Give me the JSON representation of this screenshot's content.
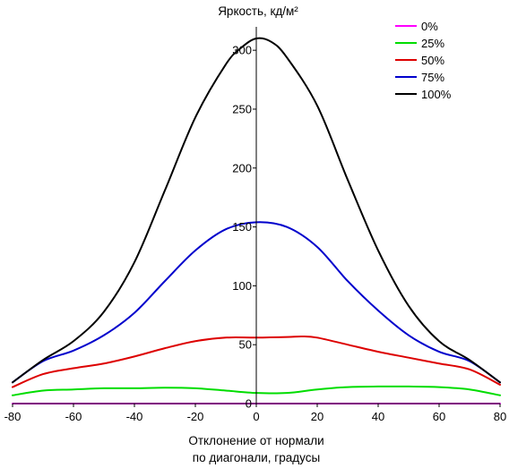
{
  "chart_data": {
    "type": "line",
    "ylabel": "Яркость, кд/м²",
    "xlabel_lines": [
      "Отклонение от нормали",
      "по диагонали, градусы"
    ],
    "xlim": [
      -80,
      80
    ],
    "ylim": [
      0,
      310
    ],
    "x_ticks": [
      -80,
      -60,
      -40,
      -20,
      0,
      20,
      40,
      60,
      80
    ],
    "y_ticks": [
      0,
      50,
      100,
      150,
      200,
      250,
      300
    ],
    "grid": false,
    "legend_position": "top-right",
    "series": [
      {
        "name": "0%",
        "color": "#ff00ff",
        "x": [
          -80,
          -60,
          -40,
          -20,
          0,
          20,
          40,
          60,
          80
        ],
        "y": [
          0,
          0,
          0,
          0,
          0,
          0,
          0,
          0,
          0
        ]
      },
      {
        "name": "25%",
        "color": "#00dd00",
        "x": [
          -80,
          -70,
          -60,
          -50,
          -40,
          -30,
          -20,
          -10,
          0,
          10,
          20,
          30,
          40,
          50,
          60,
          70,
          80
        ],
        "y": [
          7,
          11,
          12,
          13,
          13,
          13.5,
          13,
          11,
          9,
          9,
          12,
          14,
          14.5,
          14.5,
          14,
          12,
          7
        ]
      },
      {
        "name": "50%",
        "color": "#dd0000",
        "x": [
          -80,
          -70,
          -60,
          -50,
          -40,
          -30,
          -20,
          -10,
          0,
          10,
          15,
          20,
          30,
          40,
          50,
          60,
          70,
          80
        ],
        "y": [
          14,
          25,
          30,
          34,
          40,
          47,
          53,
          56,
          56,
          56.5,
          57,
          56,
          50,
          44,
          39,
          34,
          29,
          16
        ]
      },
      {
        "name": "75%",
        "color": "#0000cc",
        "x": [
          -80,
          -70,
          -60,
          -50,
          -40,
          -30,
          -20,
          -10,
          0,
          10,
          20,
          30,
          40,
          50,
          60,
          70,
          80
        ],
        "y": [
          18,
          36,
          45,
          58,
          77,
          104,
          130,
          148,
          154,
          150,
          133,
          104,
          79,
          58,
          44,
          36,
          18
        ]
      },
      {
        "name": "100%",
        "color": "#000000",
        "x": [
          -80,
          -70,
          -60,
          -50,
          -40,
          -30,
          -20,
          -10,
          -5,
          0,
          5,
          10,
          20,
          30,
          40,
          50,
          60,
          70,
          80
        ],
        "y": [
          18,
          37,
          53,
          78,
          120,
          181,
          243,
          288,
          302,
          310,
          307,
          294,
          253,
          190,
          130,
          83,
          53,
          37,
          18
        ]
      }
    ]
  }
}
